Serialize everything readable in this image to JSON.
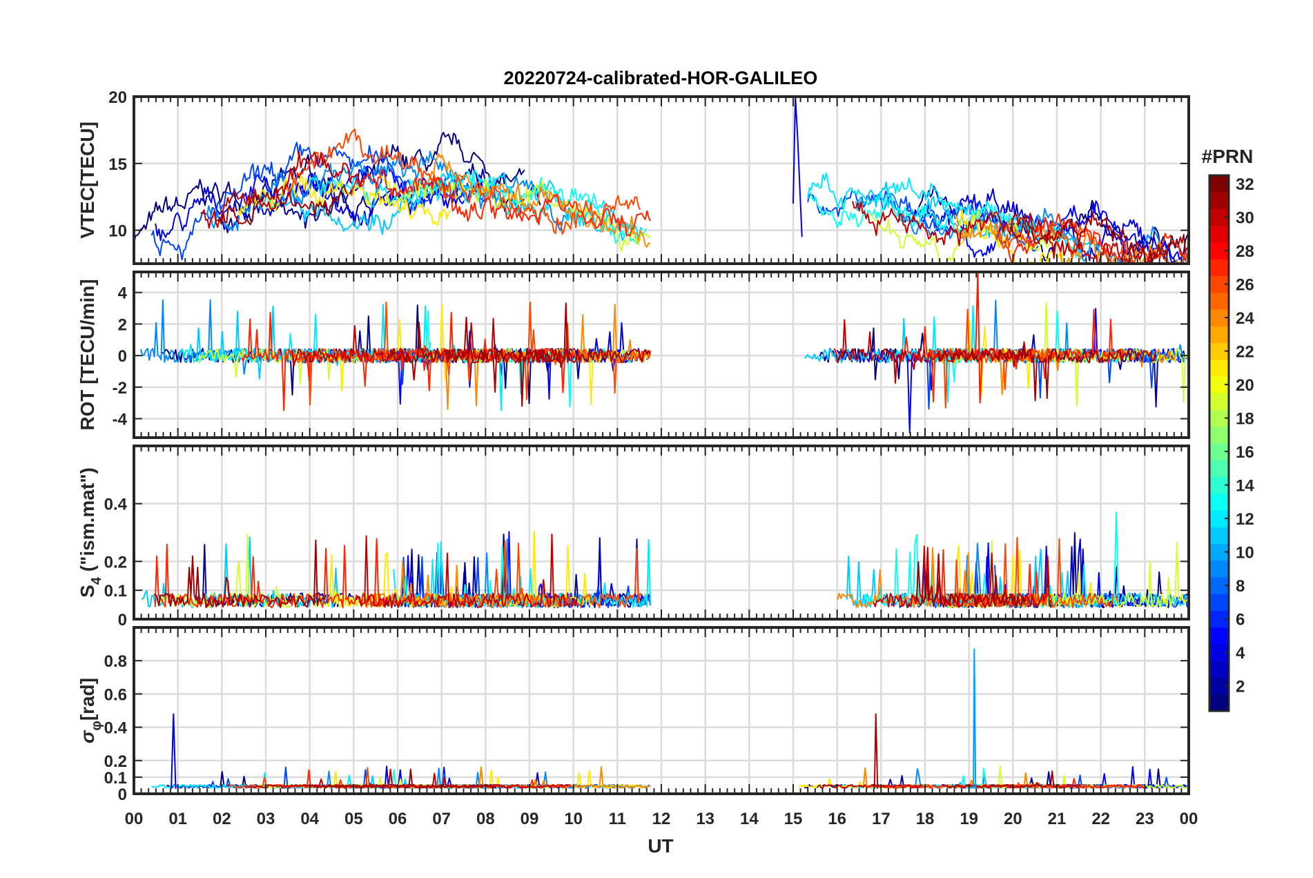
{
  "chart_data": {
    "type": "line",
    "title": "20220724-calibrated-HOR-GALILEO",
    "xlabel": "UT",
    "x_ticks": [
      "00",
      "01",
      "02",
      "03",
      "04",
      "05",
      "06",
      "07",
      "08",
      "09",
      "10",
      "11",
      "12",
      "13",
      "14",
      "15",
      "16",
      "17",
      "18",
      "19",
      "20",
      "21",
      "22",
      "23",
      "00"
    ],
    "xlim": [
      0,
      24
    ],
    "data_gap_hours": [
      11.75,
      15.0
    ],
    "colorbar": {
      "label": "#PRN",
      "range": [
        1,
        32
      ],
      "ticks": [
        "2",
        "4",
        "6",
        "8",
        "10",
        "12",
        "14",
        "16",
        "18",
        "20",
        "22",
        "24",
        "26",
        "28",
        "30",
        "32"
      ],
      "colormap": "jet"
    },
    "series_prn": [
      1,
      2,
      4,
      5,
      7,
      9,
      11,
      12,
      13,
      19,
      21,
      24,
      26,
      27,
      30,
      31
    ],
    "panels": [
      {
        "id": "vtec",
        "ylabel": "VTEC[TECU]",
        "ylim": [
          7.5,
          20
        ],
        "yticks": [
          "10",
          "15",
          "20"
        ],
        "ytick_values": [
          10,
          15,
          20
        ],
        "base_level": 11.5,
        "spread": 1.8,
        "peak": 20
      },
      {
        "id": "rot",
        "ylabel": "ROT [TECU/min]",
        "ylim": [
          -5.2,
          5.3
        ],
        "yticks": [
          "-4",
          "-2",
          "0",
          "2",
          "4"
        ],
        "ytick_values": [
          -4,
          -2,
          0,
          2,
          4
        ],
        "base_level": 0,
        "spread": 0.45,
        "peak": 5.3,
        "trough": -4.9
      },
      {
        "id": "s4",
        "ylabel": "S",
        "ylabel_sub": "4",
        "ylabel_rest": " (\"ism.mat\")",
        "ylim": [
          0,
          0.6
        ],
        "yticks": [
          "0",
          "0.1",
          "0.2",
          "0.4"
        ],
        "ytick_values": [
          0,
          0.1,
          0.2,
          0.4
        ],
        "base_level": 0.04,
        "spread": 0.05,
        "peak": 0.37
      },
      {
        "id": "sigma",
        "ylabel": "σ",
        "ylabel_sub": "φ",
        "ylabel_rest": "[rad]",
        "ylim": [
          0,
          1.0
        ],
        "yticks": [
          "0",
          "0.1",
          "0.2",
          "0.4",
          "0.6",
          "0.8"
        ],
        "ytick_values": [
          0,
          0.1,
          0.2,
          0.4,
          0.6,
          0.8
        ],
        "base_level": 0.035,
        "spread": 0.02,
        "peak": 0.87
      }
    ]
  }
}
